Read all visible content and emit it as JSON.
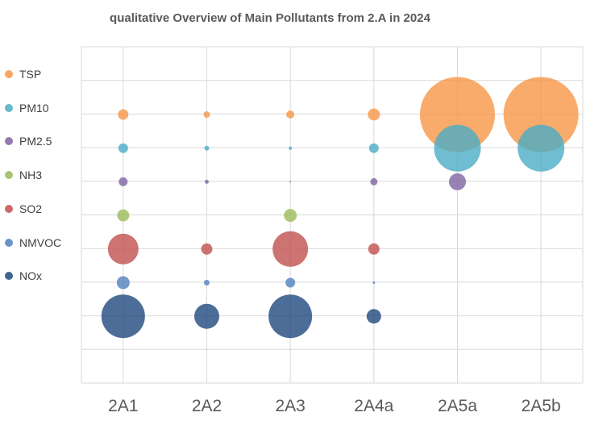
{
  "chart_data": {
    "type": "bubble",
    "title": "qualitative Overview of Main Pollutants from 2.A in 2024",
    "categories": [
      "2A1",
      "2A2",
      "2A3",
      "2A4a",
      "2A5a",
      "2A5b"
    ],
    "pollutants": [
      "TSP",
      "PM10",
      "PM2.5",
      "NH3",
      "SO2",
      "NMVOC",
      "NOx"
    ],
    "legend_position": "left",
    "grid": true,
    "colors": {
      "TSP": "#F79646",
      "PM10": "#4BACC6",
      "PM2.5": "#8064A2",
      "NH3": "#9BBB59",
      "SO2": "#C0504D",
      "NMVOC": "#4F81BD",
      "NOx": "#1F497D"
    },
    "series": [
      {
        "name": "TSP",
        "values": [
          13,
          8,
          10,
          15,
          93,
          93
        ]
      },
      {
        "name": "PM10",
        "values": [
          12,
          6,
          4,
          12,
          58,
          58
        ]
      },
      {
        "name": "PM2.5",
        "values": [
          11,
          5,
          2,
          9,
          21,
          0
        ]
      },
      {
        "name": "NH3",
        "values": [
          15,
          0,
          16,
          1,
          0,
          0
        ]
      },
      {
        "name": "SO2",
        "values": [
          38,
          14,
          44,
          14,
          0,
          0
        ]
      },
      {
        "name": "NMVOC",
        "values": [
          16,
          7,
          12,
          3,
          0,
          0
        ]
      },
      {
        "name": "NOx",
        "values": [
          54,
          31,
          54,
          18,
          0,
          0
        ]
      }
    ],
    "size_unit": "relative bubble diameter (qualitative)"
  }
}
